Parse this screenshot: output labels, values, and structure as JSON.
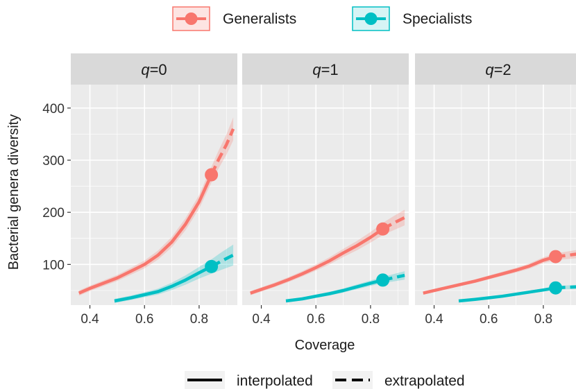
{
  "chart_data": {
    "type": "line",
    "xlabel": "Coverage",
    "ylabel": "Bacterial genera diversity",
    "xlim": [
      0.33,
      0.94
    ],
    "ylim": [
      22,
      445
    ],
    "x_ticks": [
      {
        "value": 0.4,
        "label": "0.4"
      },
      {
        "value": 0.6,
        "label": "0.6"
      },
      {
        "value": 0.8,
        "label": "0.8"
      }
    ],
    "y_ticks": [
      {
        "value": 100,
        "label": "100"
      },
      {
        "value": 200,
        "label": "200"
      },
      {
        "value": 300,
        "label": "300"
      },
      {
        "value": 400,
        "label": "400"
      }
    ],
    "grid": true,
    "legend_top": {
      "position": "top",
      "entries": [
        {
          "label": "Generalists",
          "color": "#F8766D"
        },
        {
          "label": "Specialists",
          "color": "#00BFC4"
        }
      ]
    },
    "legend_bottom": {
      "position": "bottom",
      "entries": [
        {
          "label": "interpolated",
          "style": "solid"
        },
        {
          "label": "extrapolated",
          "style": "dashed"
        }
      ]
    },
    "panels": [
      {
        "q": "0",
        "series": [
          {
            "name": "Generalists",
            "color": "#F8766D",
            "interpolated": [
              [
                0.36,
                45
              ],
              [
                0.4,
                54
              ],
              [
                0.45,
                64
              ],
              [
                0.5,
                74
              ],
              [
                0.55,
                87
              ],
              [
                0.6,
                100
              ],
              [
                0.65,
                118
              ],
              [
                0.7,
                143
              ],
              [
                0.75,
                177
              ],
              [
                0.8,
                220
              ],
              [
                0.845,
                272
              ]
            ],
            "extrapolated": [
              [
                0.845,
                272
              ],
              [
                0.87,
                300
              ],
              [
                0.9,
                330
              ],
              [
                0.925,
                360
              ]
            ],
            "band": [
              5,
              22
            ],
            "observed": [
              0.845,
              272
            ]
          },
          {
            "name": "Specialists",
            "color": "#00BFC4",
            "interpolated": [
              [
                0.49,
                30
              ],
              [
                0.55,
                36
              ],
              [
                0.6,
                42
              ],
              [
                0.65,
                48
              ],
              [
                0.7,
                58
              ],
              [
                0.75,
                70
              ],
              [
                0.8,
                84
              ],
              [
                0.845,
                96
              ]
            ],
            "extrapolated": [
              [
                0.845,
                96
              ],
              [
                0.88,
                106
              ],
              [
                0.925,
                118
              ]
            ],
            "band": [
              4,
              20
            ],
            "observed": [
              0.845,
              96
            ]
          }
        ]
      },
      {
        "q": "1",
        "series": [
          {
            "name": "Generalists",
            "color": "#F8766D",
            "interpolated": [
              [
                0.36,
                45
              ],
              [
                0.4,
                52
              ],
              [
                0.45,
                61
              ],
              [
                0.5,
                71
              ],
              [
                0.55,
                82
              ],
              [
                0.6,
                94
              ],
              [
                0.65,
                107
              ],
              [
                0.7,
                122
              ],
              [
                0.75,
                136
              ],
              [
                0.8,
                152
              ],
              [
                0.845,
                168
              ]
            ],
            "extrapolated": [
              [
                0.845,
                168
              ],
              [
                0.88,
                178
              ],
              [
                0.925,
                190
              ]
            ],
            "band": [
              4,
              15
            ],
            "observed": [
              0.845,
              168
            ]
          },
          {
            "name": "Specialists",
            "color": "#00BFC4",
            "interpolated": [
              [
                0.49,
                30
              ],
              [
                0.55,
                34
              ],
              [
                0.6,
                39
              ],
              [
                0.65,
                44
              ],
              [
                0.7,
                50
              ],
              [
                0.75,
                57
              ],
              [
                0.8,
                64
              ],
              [
                0.845,
                70
              ]
            ],
            "extrapolated": [
              [
                0.845,
                70
              ],
              [
                0.88,
                74
              ],
              [
                0.925,
                79
              ]
            ],
            "band": [
              3,
              8
            ],
            "observed": [
              0.845,
              70
            ]
          }
        ]
      },
      {
        "q": "2",
        "series": [
          {
            "name": "Generalists",
            "color": "#F8766D",
            "interpolated": [
              [
                0.36,
                45
              ],
              [
                0.45,
                56
              ],
              [
                0.5,
                62
              ],
              [
                0.55,
                68
              ],
              [
                0.6,
                75
              ],
              [
                0.65,
                82
              ],
              [
                0.7,
                89
              ],
              [
                0.75,
                97
              ],
              [
                0.8,
                108
              ],
              [
                0.845,
                115
              ]
            ],
            "extrapolated": [
              [
                0.845,
                115
              ],
              [
                0.88,
                117
              ],
              [
                0.925,
                120
              ]
            ],
            "band": [
              3,
              8
            ],
            "observed": [
              0.845,
              115
            ]
          },
          {
            "name": "Specialists",
            "color": "#00BFC4",
            "interpolated": [
              [
                0.49,
                30
              ],
              [
                0.55,
                33
              ],
              [
                0.6,
                36
              ],
              [
                0.65,
                39
              ],
              [
                0.7,
                43
              ],
              [
                0.75,
                47
              ],
              [
                0.8,
                51
              ],
              [
                0.845,
                55
              ]
            ],
            "extrapolated": [
              [
                0.845,
                55
              ],
              [
                0.88,
                56
              ],
              [
                0.925,
                57
              ]
            ],
            "band": [
              2,
              4
            ],
            "observed": [
              0.845,
              55
            ]
          }
        ]
      }
    ]
  }
}
